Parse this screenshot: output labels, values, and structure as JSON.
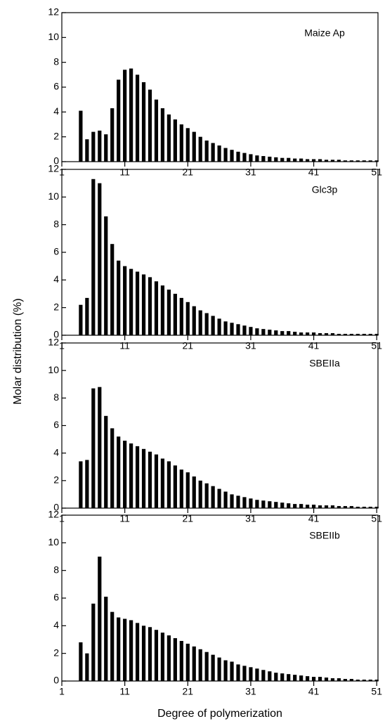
{
  "ylabel": "Molar distribution (%)",
  "xlabel": "Degree of polymerization",
  "chart_data": [
    {
      "type": "bar",
      "label": "Maize Ap",
      "color": "#000000",
      "x": [
        4,
        5,
        6,
        7,
        8,
        9,
        10,
        11,
        12,
        13,
        14,
        15,
        16,
        17,
        18,
        19,
        20,
        21,
        22,
        23,
        24,
        25,
        26,
        27,
        28,
        29,
        30,
        31,
        32,
        33,
        34,
        35,
        36,
        37,
        38,
        39,
        40,
        41,
        42,
        43,
        44,
        45,
        46,
        47,
        48,
        49,
        50,
        51
      ],
      "values": [
        4.1,
        1.8,
        2.4,
        2.5,
        2.2,
        4.3,
        6.6,
        7.4,
        7.5,
        7.0,
        6.4,
        5.8,
        5.0,
        4.3,
        3.8,
        3.4,
        3.0,
        2.7,
        2.4,
        2.0,
        1.7,
        1.5,
        1.3,
        1.1,
        0.95,
        0.8,
        0.7,
        0.6,
        0.5,
        0.45,
        0.4,
        0.35,
        0.3,
        0.3,
        0.25,
        0.25,
        0.2,
        0.2,
        0.2,
        0.15,
        0.15,
        0.15,
        0.1,
        0.1,
        0.1,
        0.1,
        0.1,
        0.1
      ],
      "xlim": [
        1,
        51.2
      ],
      "ylim": [
        0,
        12
      ],
      "xticks": [
        1,
        11,
        21,
        31,
        41,
        51
      ],
      "yticks": [
        0,
        2,
        4,
        6,
        8,
        10,
        12
      ]
    },
    {
      "type": "bar",
      "label": "Glc3p",
      "color": "#000000",
      "x": [
        4,
        5,
        6,
        7,
        8,
        9,
        10,
        11,
        12,
        13,
        14,
        15,
        16,
        17,
        18,
        19,
        20,
        21,
        22,
        23,
        24,
        25,
        26,
        27,
        28,
        29,
        30,
        31,
        32,
        33,
        34,
        35,
        36,
        37,
        38,
        39,
        40,
        41,
        42,
        43,
        44,
        45,
        46,
        47,
        48,
        49,
        50,
        51
      ],
      "values": [
        2.2,
        2.7,
        11.3,
        11.0,
        8.6,
        6.6,
        5.4,
        5.0,
        4.8,
        4.6,
        4.4,
        4.2,
        3.9,
        3.6,
        3.3,
        3.0,
        2.7,
        2.4,
        2.1,
        1.8,
        1.6,
        1.4,
        1.2,
        1.0,
        0.9,
        0.8,
        0.7,
        0.6,
        0.5,
        0.45,
        0.4,
        0.35,
        0.3,
        0.3,
        0.25,
        0.2,
        0.2,
        0.2,
        0.15,
        0.15,
        0.15,
        0.1,
        0.1,
        0.1,
        0.1,
        0.1,
        0.1,
        0.1
      ],
      "xlim": [
        1,
        51.2
      ],
      "ylim": [
        0,
        12
      ],
      "xticks": [
        1,
        11,
        21,
        31,
        41,
        51
      ],
      "yticks": [
        0,
        2,
        4,
        6,
        8,
        10,
        12
      ]
    },
    {
      "type": "bar",
      "label": "SBEIIa",
      "color": "#000000",
      "x": [
        4,
        5,
        6,
        7,
        8,
        9,
        10,
        11,
        12,
        13,
        14,
        15,
        16,
        17,
        18,
        19,
        20,
        21,
        22,
        23,
        24,
        25,
        26,
        27,
        28,
        29,
        30,
        31,
        32,
        33,
        34,
        35,
        36,
        37,
        38,
        39,
        40,
        41,
        42,
        43,
        44,
        45,
        46,
        47,
        48,
        49,
        50,
        51
      ],
      "values": [
        3.4,
        3.5,
        8.7,
        8.8,
        6.7,
        5.8,
        5.2,
        4.9,
        4.7,
        4.5,
        4.3,
        4.1,
        3.9,
        3.6,
        3.4,
        3.1,
        2.8,
        2.6,
        2.3,
        2.0,
        1.8,
        1.6,
        1.4,
        1.2,
        1.0,
        0.9,
        0.8,
        0.7,
        0.6,
        0.55,
        0.5,
        0.45,
        0.4,
        0.35,
        0.3,
        0.3,
        0.25,
        0.25,
        0.2,
        0.2,
        0.2,
        0.15,
        0.15,
        0.15,
        0.1,
        0.1,
        0.1,
        0.1
      ],
      "xlim": [
        1,
        51.2
      ],
      "ylim": [
        0,
        12
      ],
      "xticks": [
        1,
        11,
        21,
        31,
        41,
        51
      ],
      "yticks": [
        0,
        2,
        4,
        6,
        8,
        10,
        12
      ]
    },
    {
      "type": "bar",
      "label": "SBEIIb",
      "color": "#000000",
      "x": [
        4,
        5,
        6,
        7,
        8,
        9,
        10,
        11,
        12,
        13,
        14,
        15,
        16,
        17,
        18,
        19,
        20,
        21,
        22,
        23,
        24,
        25,
        26,
        27,
        28,
        29,
        30,
        31,
        32,
        33,
        34,
        35,
        36,
        37,
        38,
        39,
        40,
        41,
        42,
        43,
        44,
        45,
        46,
        47,
        48,
        49,
        50,
        51
      ],
      "values": [
        2.8,
        2.0,
        5.6,
        9.0,
        6.1,
        5.0,
        4.6,
        4.5,
        4.4,
        4.2,
        4.0,
        3.9,
        3.7,
        3.5,
        3.3,
        3.1,
        2.9,
        2.7,
        2.5,
        2.3,
        2.1,
        1.9,
        1.7,
        1.5,
        1.4,
        1.2,
        1.1,
        1.0,
        0.9,
        0.8,
        0.7,
        0.6,
        0.55,
        0.5,
        0.45,
        0.4,
        0.35,
        0.3,
        0.3,
        0.25,
        0.2,
        0.2,
        0.15,
        0.15,
        0.1,
        0.1,
        0.1,
        0.1
      ],
      "xlim": [
        1,
        51.2
      ],
      "ylim": [
        0,
        12
      ],
      "xticks": [
        1,
        11,
        21,
        31,
        41,
        51
      ],
      "yticks": [
        0,
        2,
        4,
        6,
        8,
        10,
        12
      ]
    }
  ]
}
